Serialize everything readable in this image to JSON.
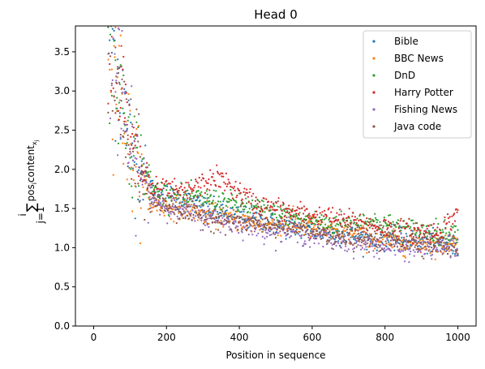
{
  "chart_data": {
    "type": "scatter",
    "title": "Head 0",
    "xlabel": "Position in sequence",
    "ylabel": "∑ pos_i content_{x_j} (j=1 … i)",
    "xlim": [
      -50,
      1050
    ],
    "ylim": [
      0,
      3.83
    ],
    "xticks": [
      0,
      200,
      400,
      600,
      800,
      1000
    ],
    "yticks": [
      0.0,
      0.5,
      1.0,
      1.5,
      2.0,
      2.5,
      3.0,
      3.5
    ],
    "xtick_labels": [
      "0",
      "200",
      "400",
      "600",
      "800",
      "1000"
    ],
    "ytick_labels": [
      "0.0",
      "0.5",
      "1.0",
      "1.5",
      "2.0",
      "2.5",
      "3.0",
      "3.5"
    ],
    "grid": false,
    "legend_position": "top-right",
    "x_range": [
      40,
      1000
    ],
    "series": [
      {
        "name": "Bible",
        "color": "#1f77b4",
        "trend": [
          [
            40,
            4.0
          ],
          [
            100,
            2.3
          ],
          [
            160,
            1.75
          ],
          [
            250,
            1.6
          ],
          [
            350,
            1.45
          ],
          [
            450,
            1.35
          ],
          [
            550,
            1.25
          ],
          [
            650,
            1.2
          ],
          [
            750,
            1.12
          ],
          [
            850,
            1.1
          ],
          [
            950,
            1.05
          ],
          [
            1000,
            1.0
          ]
        ]
      },
      {
        "name": "BBC News",
        "color": "#ff7f0e",
        "trend": [
          [
            40,
            3.9
          ],
          [
            100,
            2.2
          ],
          [
            160,
            1.55
          ],
          [
            250,
            1.5
          ],
          [
            350,
            1.4
          ],
          [
            450,
            1.3
          ],
          [
            550,
            1.3
          ],
          [
            650,
            1.2
          ],
          [
            750,
            1.12
          ],
          [
            850,
            1.05
          ],
          [
            950,
            1.05
          ],
          [
            1000,
            1.05
          ]
        ]
      },
      {
        "name": "DnD",
        "color": "#2ca02c",
        "trend": [
          [
            40,
            4.0
          ],
          [
            100,
            2.4
          ],
          [
            160,
            1.75
          ],
          [
            250,
            1.65
          ],
          [
            350,
            1.6
          ],
          [
            450,
            1.5
          ],
          [
            550,
            1.4
          ],
          [
            650,
            1.3
          ],
          [
            750,
            1.35
          ],
          [
            850,
            1.25
          ],
          [
            950,
            1.2
          ],
          [
            1000,
            1.2
          ]
        ]
      },
      {
        "name": "Harry Potter",
        "color": "#d62728",
        "trend": [
          [
            40,
            4.0
          ],
          [
            100,
            2.3
          ],
          [
            160,
            1.75
          ],
          [
            250,
            1.7
          ],
          [
            340,
            1.9
          ],
          [
            450,
            1.55
          ],
          [
            550,
            1.45
          ],
          [
            650,
            1.38
          ],
          [
            750,
            1.3
          ],
          [
            850,
            1.22
          ],
          [
            950,
            1.2
          ],
          [
            1000,
            1.45
          ]
        ]
      },
      {
        "name": "Fishing News",
        "color": "#9467bd",
        "trend": [
          [
            40,
            3.8
          ],
          [
            100,
            2.2
          ],
          [
            160,
            1.6
          ],
          [
            250,
            1.45
          ],
          [
            350,
            1.35
          ],
          [
            450,
            1.25
          ],
          [
            550,
            1.2
          ],
          [
            650,
            1.1
          ],
          [
            750,
            1.05
          ],
          [
            850,
            0.98
          ],
          [
            950,
            1.0
          ],
          [
            1000,
            1.0
          ]
        ]
      },
      {
        "name": "Java code",
        "color": "#8c564b",
        "trend": [
          [
            40,
            3.7
          ],
          [
            100,
            2.3
          ],
          [
            160,
            1.6
          ],
          [
            250,
            1.45
          ],
          [
            350,
            1.35
          ],
          [
            450,
            1.3
          ],
          [
            550,
            1.25
          ],
          [
            650,
            1.15
          ],
          [
            750,
            1.1
          ],
          [
            850,
            1.1
          ],
          [
            950,
            1.05
          ],
          [
            1000,
            1.0
          ]
        ]
      }
    ]
  }
}
